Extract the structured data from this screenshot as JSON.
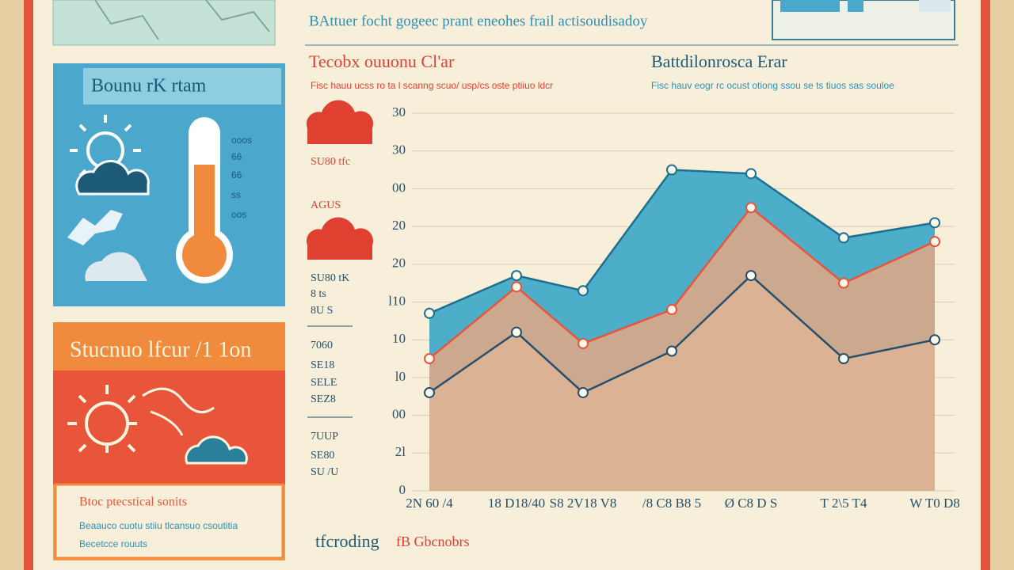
{
  "header": {
    "text": "BAttuer focht gogeec prant eneohes frail actisoudisadoy"
  },
  "weather_panel": {
    "title": "Bounu rK rtam",
    "labels": [
      "ooos",
      "66",
      "66",
      "ss",
      "oos"
    ]
  },
  "sun_panel": {
    "title": "Stucnuo lfcur /1 1on",
    "heading": "Btoc ptecstical sonits",
    "lines": [
      "Beaauco cuotu stiiu tlcansuo csoutitia",
      "Becetcce rouuts"
    ]
  },
  "side_notes": [
    "SU80 tfc",
    "AGUS",
    "SU80 tK",
    "8 ts",
    "8U S",
    "7060",
    "SE18",
    "SELE",
    "SEZ8",
    "7UUP",
    "SE80",
    "SU /U"
  ],
  "footer": {
    "lead": "tfcroding",
    "accent": "fB Gbcnobrs"
  },
  "chart_data": {
    "type": "line",
    "title": "Tecobx ouuonu Cl'ar",
    "subtitle": "Fisc hauu ucss ro ta l scanng scuo/ usp/cs oste ptiiuo ldcr",
    "secondary_title": "Battdilonrosca Erar",
    "secondary_subtitle": "Fisc hauv eogr rc ocust otiong ssou se ts tiuos sas souloe",
    "categories": [
      "2N 60 /4",
      "18 D18/40",
      "S8 2V18 V8",
      "/8 C8 B8 5",
      "Ø C8 D S",
      "T 2\\5 T4",
      "W T0 D8"
    ],
    "series": [
      {
        "color": "#2e9fc4",
        "values": [
          47,
          57,
          53,
          85,
          84,
          67,
          71
        ]
      },
      {
        "color": "#e8553a",
        "values": [
          35,
          54,
          39,
          48,
          75,
          55,
          66
        ]
      },
      {
        "color": "#264f6b",
        "values": [
          26,
          42,
          26,
          37,
          57,
          35,
          40
        ]
      }
    ],
    "ylim": [
      0,
      100
    ],
    "yticks": [
      0,
      {
        "value": 10,
        "label": "2l"
      },
      {
        "value": 20,
        "label": "00"
      },
      {
        "value": 30,
        "label": "l0"
      },
      {
        "value": 40,
        "label": "10"
      },
      {
        "value": 50,
        "label": "l10"
      },
      {
        "value": 60,
        "label": "20"
      },
      {
        "value": 70,
        "label": "20"
      },
      {
        "value": 80,
        "label": "00"
      },
      {
        "value": 90,
        "label": "30"
      },
      {
        "value": 100,
        "label": "30"
      }
    ],
    "grid": true
  }
}
